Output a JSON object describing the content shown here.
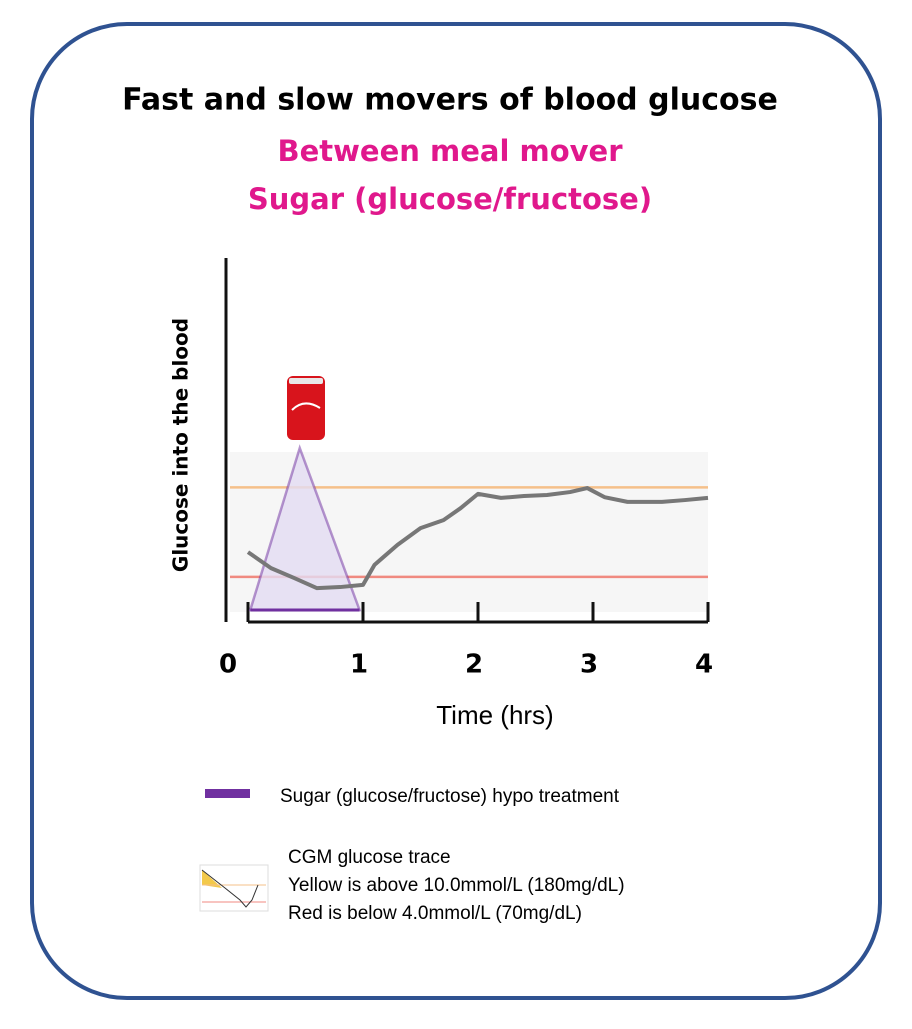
{
  "chart_data": {
    "type": "line",
    "title": "Fast and slow movers of blood  glucose",
    "subtitle": [
      "Between meal mover",
      "Sugar (glucose/fructose)"
    ],
    "xlabel": "Time (hrs)",
    "ylabel": "Glucose into the blood",
    "xlim": [
      0,
      4
    ],
    "xticks": [
      0,
      1,
      2,
      3,
      4
    ],
    "ylim": [
      0,
      100
    ],
    "reference_lines": [
      {
        "value": 37,
        "color": "#f5c08a"
      },
      {
        "value": 12.4,
        "color": "#f08a80"
      }
    ],
    "series": [
      {
        "name": "Sugar (glucose/fructose) hypo treatment",
        "color": "#7030a0",
        "fill": "#e4dcf2",
        "x": [
          0.02,
          0.45,
          0.97
        ],
        "values": [
          3.3,
          47.8,
          3.3
        ]
      },
      {
        "name": "CGM glucose trace",
        "color": "#777777",
        "x": [
          0,
          0.2,
          0.4,
          0.6,
          0.8,
          1.0,
          1.1,
          1.3,
          1.5,
          1.7,
          1.85,
          2.0,
          2.2,
          2.4,
          2.6,
          2.8,
          2.95,
          3.1,
          3.3,
          3.6,
          3.8,
          4.0
        ],
        "values": [
          19.2,
          14.8,
          12.1,
          9.3,
          9.6,
          10.2,
          15.7,
          21.2,
          25.8,
          28.0,
          31.3,
          35.2,
          34.1,
          34.6,
          34.9,
          35.7,
          36.8,
          34.3,
          33.0,
          33.0,
          33.5,
          34.1
        ]
      }
    ],
    "legend_notes": [
      "Yellow is above 10.0mmol/L (180mg/dL)",
      "Red is below 4.0mmol/L (70mg/dL)"
    ]
  }
}
